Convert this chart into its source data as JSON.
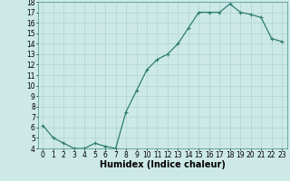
{
  "x": [
    0,
    1,
    2,
    3,
    4,
    5,
    6,
    7,
    8,
    9,
    10,
    11,
    12,
    13,
    14,
    15,
    16,
    17,
    18,
    19,
    20,
    21,
    22,
    23
  ],
  "y": [
    6.2,
    5.0,
    4.5,
    4.0,
    4.0,
    4.5,
    4.2,
    4.0,
    7.5,
    9.5,
    11.5,
    12.5,
    13.0,
    14.0,
    15.5,
    17.0,
    17.0,
    17.0,
    17.8,
    17.0,
    16.8,
    16.5,
    14.5,
    14.2
  ],
  "line_color": "#2e7d6e",
  "marker": "+",
  "marker_size": 3,
  "marker_linewidth": 0.8,
  "line_width": 0.9,
  "bg_color": "#cce9e7",
  "grid_color": "#aed4d1",
  "xlabel": "Humidex (Indice chaleur)",
  "xlim": [
    -0.5,
    23.5
  ],
  "ylim": [
    4,
    18
  ],
  "yticks": [
    4,
    5,
    6,
    7,
    8,
    9,
    10,
    11,
    12,
    13,
    14,
    15,
    16,
    17,
    18
  ],
  "xticks": [
    0,
    1,
    2,
    3,
    4,
    5,
    6,
    7,
    8,
    9,
    10,
    11,
    12,
    13,
    14,
    15,
    16,
    17,
    18,
    19,
    20,
    21,
    22,
    23
  ],
  "xlabel_fontsize": 7,
  "tick_fontsize": 5.5
}
